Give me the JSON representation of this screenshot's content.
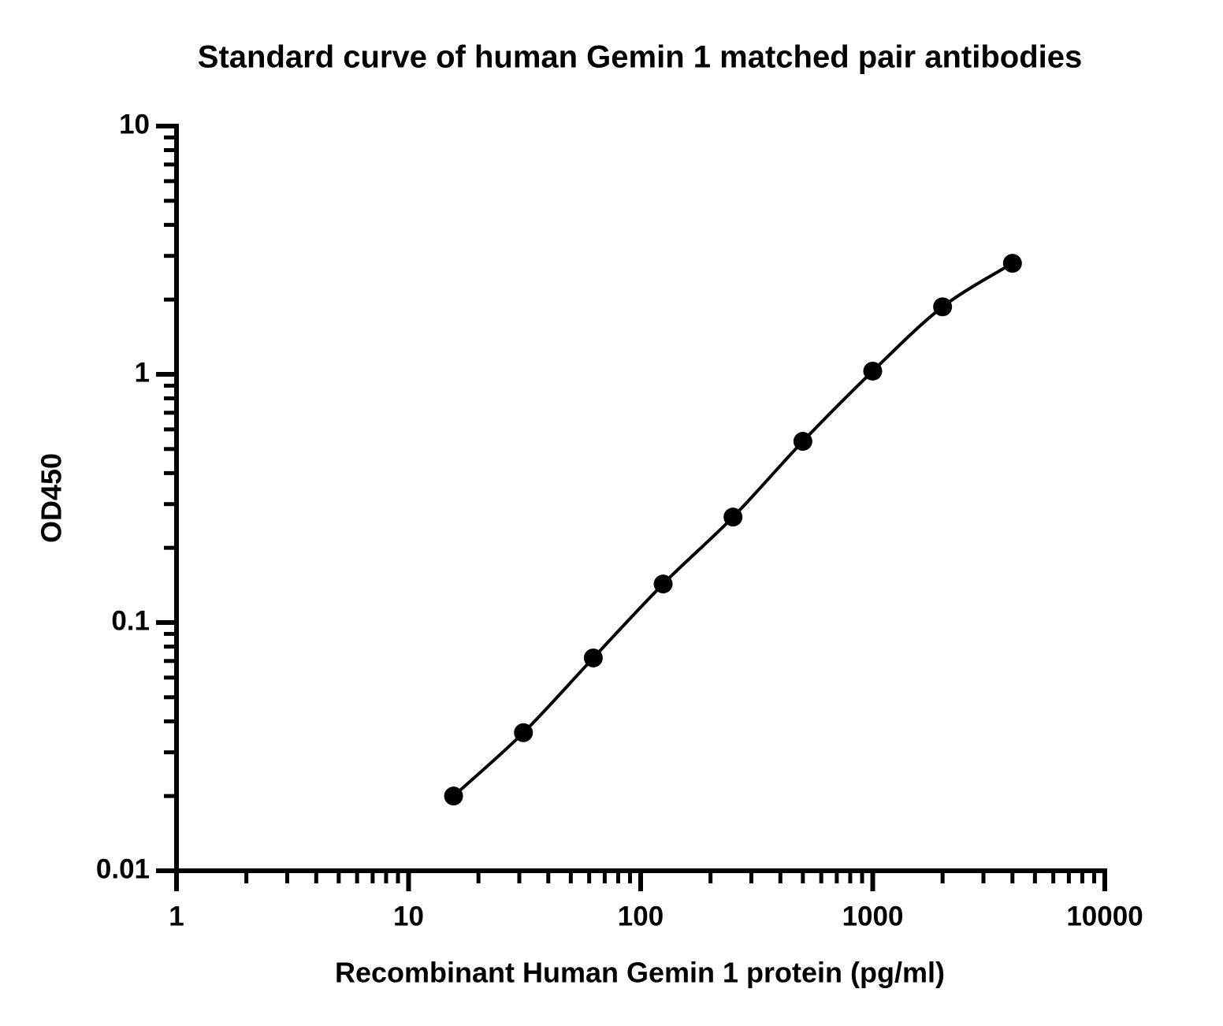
{
  "chart_data": {
    "type": "line",
    "title": "Standard curve of human Gemin 1 matched pair antibodies",
    "x_label": "Recombinant Human Gemin 1 protein (pg/ml)",
    "y_label": "OD450",
    "x": [
      15.625,
      31.25,
      62.5,
      125,
      250,
      500,
      1000,
      2000,
      4000
    ],
    "series": [
      {
        "color": "#000000",
        "values": [
          0.02,
          0.036,
          0.072,
          0.143,
          0.266,
          0.537,
          1.03,
          1.87,
          2.8
        ]
      }
    ],
    "xscale": "log",
    "yscale": "log",
    "xlim": [
      1,
      10000
    ],
    "ylim": [
      0.01,
      10
    ],
    "xticks": [
      1,
      10,
      100,
      1000,
      10000
    ],
    "yticks": [
      0.01,
      0.1,
      1,
      10
    ],
    "markers": true,
    "smooth": true
  }
}
